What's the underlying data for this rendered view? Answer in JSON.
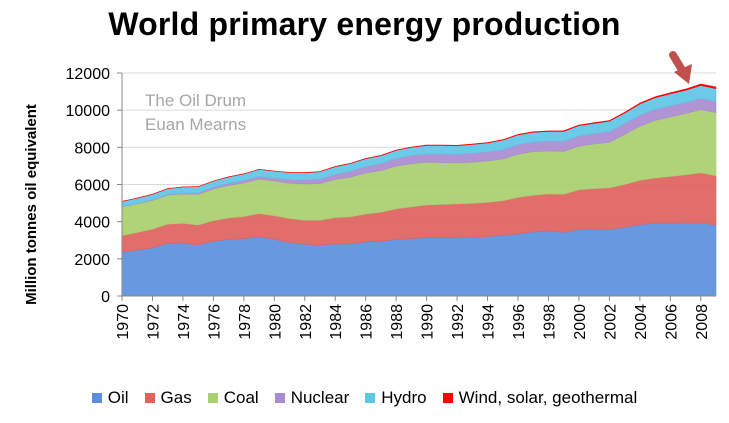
{
  "title": "World primary energy production",
  "watermark": [
    "The Oil Drum",
    "Euan Mearns"
  ],
  "colors": {
    "oil": "#5b8fdc",
    "gas": "#e0625f",
    "coal": "#a9cf6e",
    "nuclear": "#a98bcf",
    "hydro": "#5ec6e6",
    "wind": "#ff0000",
    "arrow": "#c0504d"
  },
  "chart_data": {
    "type": "area",
    "stacked": true,
    "title": "World primary energy production",
    "ylabel": "Million tonnes oil equivalent",
    "xlabel": "",
    "ylim": [
      0,
      12000
    ],
    "yticks": [
      0,
      2000,
      4000,
      6000,
      8000,
      10000,
      12000
    ],
    "xticks": [
      1970,
      1972,
      1974,
      1976,
      1978,
      1980,
      1982,
      1984,
      1986,
      1988,
      1990,
      1992,
      1994,
      1996,
      1998,
      2000,
      2002,
      2004,
      2006,
      2008
    ],
    "grid": true,
    "legend_position": "bottom",
    "x": [
      1970,
      1971,
      1972,
      1973,
      1974,
      1975,
      1976,
      1977,
      1978,
      1979,
      1980,
      1981,
      1982,
      1983,
      1984,
      1985,
      1986,
      1987,
      1988,
      1989,
      1990,
      1991,
      1992,
      1993,
      1994,
      1995,
      1996,
      1997,
      1998,
      1999,
      2000,
      2001,
      2002,
      2003,
      2004,
      2005,
      2006,
      2007,
      2008,
      2009
    ],
    "series": [
      {
        "name": "Oil",
        "key": "oil",
        "values": [
          2350,
          2470,
          2600,
          2830,
          2850,
          2750,
          2950,
          3050,
          3090,
          3200,
          3050,
          2880,
          2780,
          2750,
          2800,
          2800,
          2920,
          2950,
          3050,
          3100,
          3150,
          3150,
          3160,
          3170,
          3200,
          3250,
          3350,
          3450,
          3500,
          3420,
          3600,
          3600,
          3580,
          3700,
          3850,
          3900,
          3910,
          3920,
          3930,
          3820
        ]
      },
      {
        "name": "Gas",
        "key": "gas",
        "values": [
          900,
          950,
          1000,
          1040,
          1060,
          1070,
          1110,
          1150,
          1190,
          1240,
          1270,
          1290,
          1300,
          1330,
          1420,
          1460,
          1500,
          1560,
          1640,
          1700,
          1750,
          1780,
          1800,
          1820,
          1840,
          1880,
          1960,
          1970,
          2000,
          2060,
          2120,
          2180,
          2240,
          2300,
          2380,
          2450,
          2520,
          2600,
          2700,
          2650
        ]
      },
      {
        "name": "Coal",
        "key": "coal",
        "values": [
          1550,
          1540,
          1550,
          1560,
          1580,
          1650,
          1700,
          1750,
          1800,
          1850,
          1870,
          1900,
          1950,
          1970,
          2050,
          2140,
          2200,
          2240,
          2300,
          2320,
          2300,
          2250,
          2200,
          2210,
          2230,
          2250,
          2320,
          2350,
          2300,
          2300,
          2340,
          2400,
          2450,
          2700,
          2900,
          3100,
          3200,
          3300,
          3400,
          3400
        ]
      },
      {
        "name": "Nuclear",
        "key": "nuclear",
        "values": [
          20,
          25,
          35,
          45,
          55,
          80,
          95,
          120,
          140,
          150,
          160,
          190,
          210,
          240,
          280,
          320,
          350,
          380,
          420,
          440,
          450,
          460,
          470,
          480,
          490,
          500,
          520,
          520,
          540,
          550,
          560,
          570,
          580,
          580,
          600,
          600,
          610,
          600,
          610,
          600
        ]
      },
      {
        "name": "Hydro",
        "key": "hydro",
        "values": [
          270,
          280,
          290,
          300,
          320,
          330,
          330,
          340,
          350,
          370,
          370,
          380,
          390,
          400,
          410,
          410,
          420,
          420,
          430,
          440,
          450,
          460,
          460,
          480,
          480,
          510,
          520,
          520,
          520,
          530,
          550,
          540,
          560,
          560,
          600,
          620,
          640,
          650,
          690,
          690
        ]
      },
      {
        "name": "Wind, solar, geothermal",
        "key": "wind",
        "values": [
          5,
          5,
          5,
          5,
          6,
          6,
          6,
          7,
          7,
          8,
          8,
          9,
          10,
          11,
          12,
          13,
          14,
          15,
          16,
          17,
          18,
          19,
          20,
          21,
          22,
          23,
          24,
          25,
          26,
          28,
          30,
          33,
          36,
          40,
          45,
          50,
          57,
          65,
          75,
          85
        ]
      }
    ]
  },
  "legend": [
    {
      "label": "Oil",
      "key": "oil"
    },
    {
      "label": "Gas",
      "key": "gas"
    },
    {
      "label": "Coal",
      "key": "coal"
    },
    {
      "label": "Nuclear",
      "key": "nuclear"
    },
    {
      "label": "Hydro",
      "key": "hydro"
    },
    {
      "label": "Wind, solar, geothermal",
      "key": "wind"
    }
  ]
}
